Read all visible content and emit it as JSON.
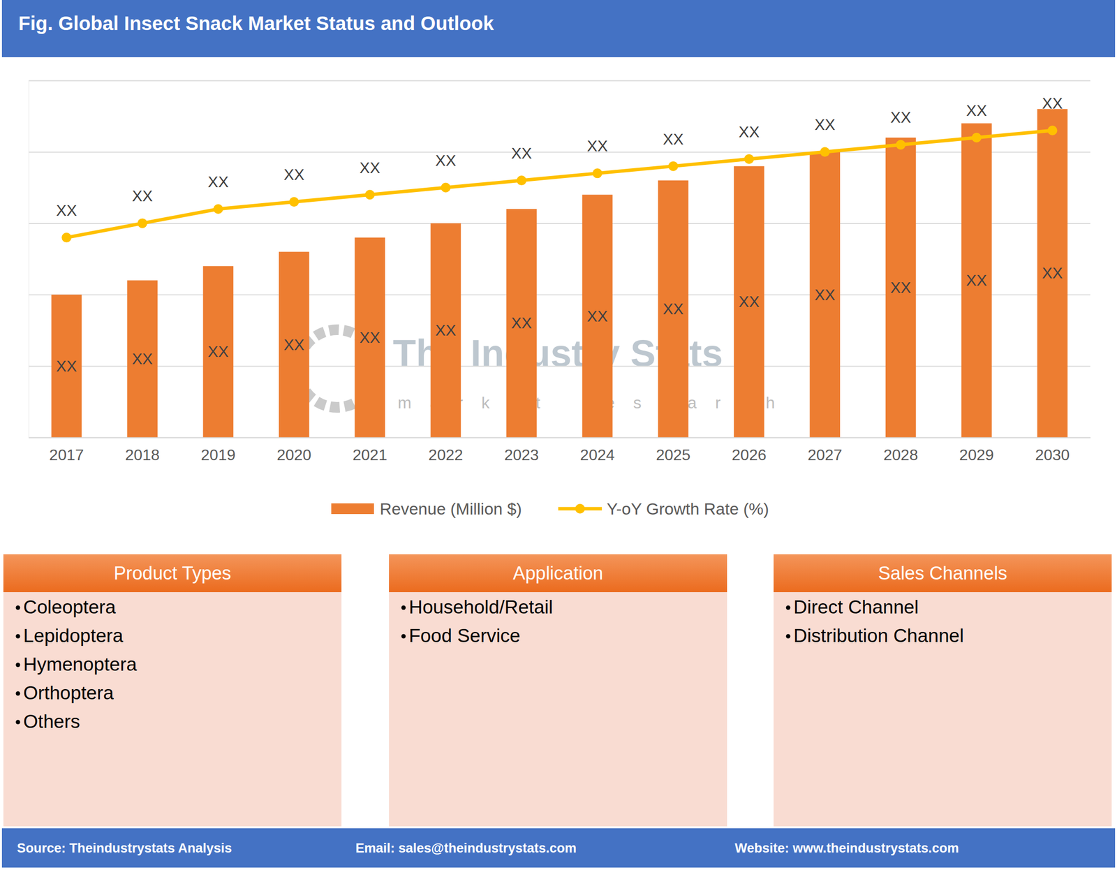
{
  "chart_data": {
    "type": "bar",
    "title": "Fig. Global Insect Snack Market Status and Outlook",
    "categories": [
      "2017",
      "2018",
      "2019",
      "2020",
      "2021",
      "2022",
      "2023",
      "2024",
      "2025",
      "2026",
      "2027",
      "2028",
      "2029",
      "2030"
    ],
    "series": [
      {
        "name": "Revenue (Million $)",
        "type": "bar",
        "color": "#ed7d31",
        "values": [
          2.0,
          2.2,
          2.4,
          2.6,
          2.8,
          3.0,
          3.2,
          3.4,
          3.6,
          3.8,
          4.0,
          4.2,
          4.4,
          4.6
        ],
        "value_labels": [
          "XX",
          "XX",
          "XX",
          "XX",
          "XX",
          "XX",
          "XX",
          "XX",
          "XX",
          "XX",
          "XX",
          "XX",
          "XX",
          "XX"
        ]
      },
      {
        "name": "Y-oY Growth Rate (%)",
        "type": "line",
        "color": "#ffc000",
        "marker": "circle",
        "values": [
          2.8,
          3.0,
          3.2,
          3.3,
          3.4,
          3.5,
          3.6,
          3.7,
          3.8,
          3.9,
          4.0,
          4.1,
          4.2,
          4.3
        ],
        "value_labels": [
          "XX",
          "XX",
          "XX",
          "XX",
          "XX",
          "XX",
          "XX",
          "XX",
          "XX",
          "XX",
          "XX",
          "XX",
          "XX",
          "XX"
        ]
      }
    ],
    "ylim": [
      0,
      5
    ],
    "yticks": [
      0,
      1,
      2,
      3,
      4,
      5
    ],
    "grid": true,
    "data_labels": true,
    "tick_labels": "x",
    "legend": "bottom"
  },
  "watermark": {
    "title": "The Industry Stats",
    "subtitle": "market research"
  },
  "panels": [
    {
      "title": "Product Types",
      "items": [
        "Coleoptera",
        "Lepidoptera",
        "Hymenoptera",
        "Orthoptera",
        "Others"
      ]
    },
    {
      "title": "Application",
      "items": [
        "Household/Retail",
        "Food Service"
      ]
    },
    {
      "title": "Sales Channels",
      "items": [
        "Direct Channel",
        "Distribution Channel"
      ]
    }
  ],
  "footer": {
    "source": "Source: Theindustrystats Analysis",
    "email": "Email: sales@theindustrystats.com",
    "website": "Website: www.theindustrystats.com"
  }
}
